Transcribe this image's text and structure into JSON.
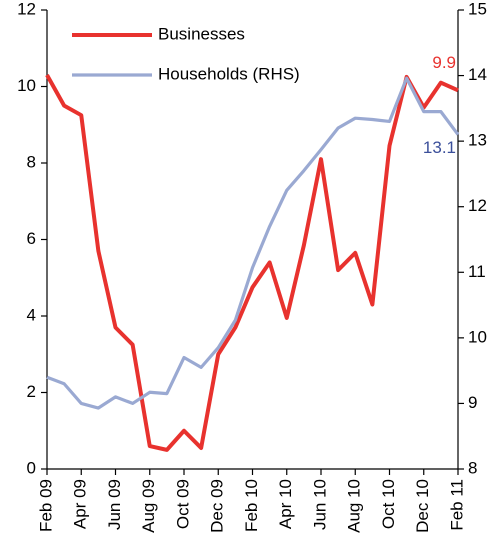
{
  "chart_data": {
    "type": "line",
    "categories": [
      "Feb 09",
      null,
      "Apr 09",
      null,
      "Jun 09",
      null,
      "Aug 09",
      null,
      "Oct 09",
      null,
      "Dec 09",
      null,
      "Feb 10",
      null,
      "Apr 10",
      null,
      "Jun 10",
      null,
      "Aug 10",
      null,
      "Oct 10",
      null,
      "Dec 10",
      null,
      "Feb 11"
    ],
    "series": [
      {
        "name": "Businesses",
        "color": "#e8322e",
        "values": [
          10.3,
          9.5,
          9.25,
          5.7,
          3.7,
          3.25,
          0.6,
          0.5,
          1.0,
          0.55,
          3.0,
          3.7,
          4.75,
          5.4,
          3.95,
          5.85,
          8.1,
          5.2,
          5.65,
          4.3,
          8.45,
          10.25,
          9.45,
          10.1,
          9.9
        ]
      },
      {
        "name": "Households (RHS)",
        "color": "#9aa9d2",
        "axis": "y2",
        "values": [
          9.4,
          9.3,
          9.0,
          8.93,
          9.1,
          9.0,
          9.17,
          9.15,
          9.7,
          9.55,
          9.85,
          10.27,
          11.07,
          11.7,
          12.25,
          12.55,
          12.87,
          13.2,
          13.35,
          13.33,
          13.3,
          13.96,
          13.45,
          13.45,
          13.1
        ]
      }
    ],
    "ylim": [
      0,
      12
    ],
    "yticks": [
      0,
      2,
      4,
      6,
      8,
      10,
      12
    ],
    "y2lim": [
      8,
      15
    ],
    "y2ticks": [
      8,
      9,
      10,
      11,
      12,
      13,
      14,
      15
    ],
    "grid": false,
    "legend": "upper left"
  }
}
